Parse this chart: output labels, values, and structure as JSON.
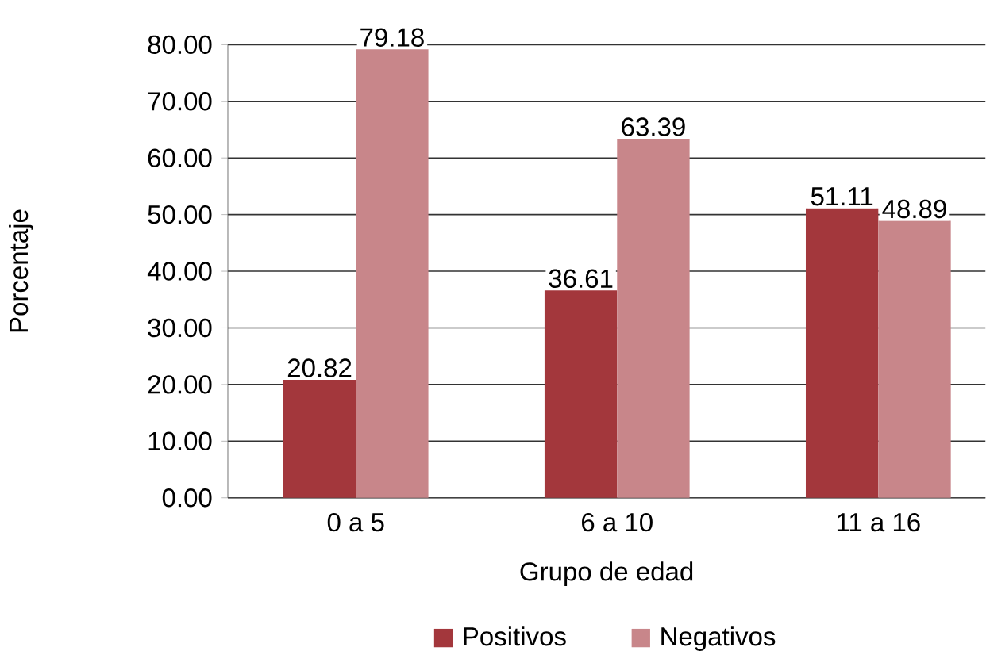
{
  "chart_data": {
    "type": "bar",
    "xlabel": "Grupo de edad",
    "ylabel": "Porcentaje",
    "categories": [
      "0 a 5",
      "6 a 10",
      "11 a 16"
    ],
    "series": [
      {
        "name": "Positivos",
        "color": "#a3373c",
        "values": [
          20.82,
          36.61,
          51.11
        ]
      },
      {
        "name": "Negativos",
        "color": "#c8868a",
        "values": [
          79.18,
          63.39,
          48.89
        ]
      }
    ],
    "ylim": [
      0,
      80
    ],
    "yticks": [
      {
        "value": 0,
        "label": "0.00"
      },
      {
        "value": 10,
        "label": "10.00"
      },
      {
        "value": 20,
        "label": "20.00"
      },
      {
        "value": 30,
        "label": "30.00"
      },
      {
        "value": 40,
        "label": "40.00"
      },
      {
        "value": 50,
        "label": "50.00"
      },
      {
        "value": 60,
        "label": "60.00"
      },
      {
        "value": 70,
        "label": "70.00"
      },
      {
        "value": 80,
        "label": "80.00"
      }
    ],
    "grid": "y",
    "data_labels": true,
    "legend": "bottom"
  }
}
